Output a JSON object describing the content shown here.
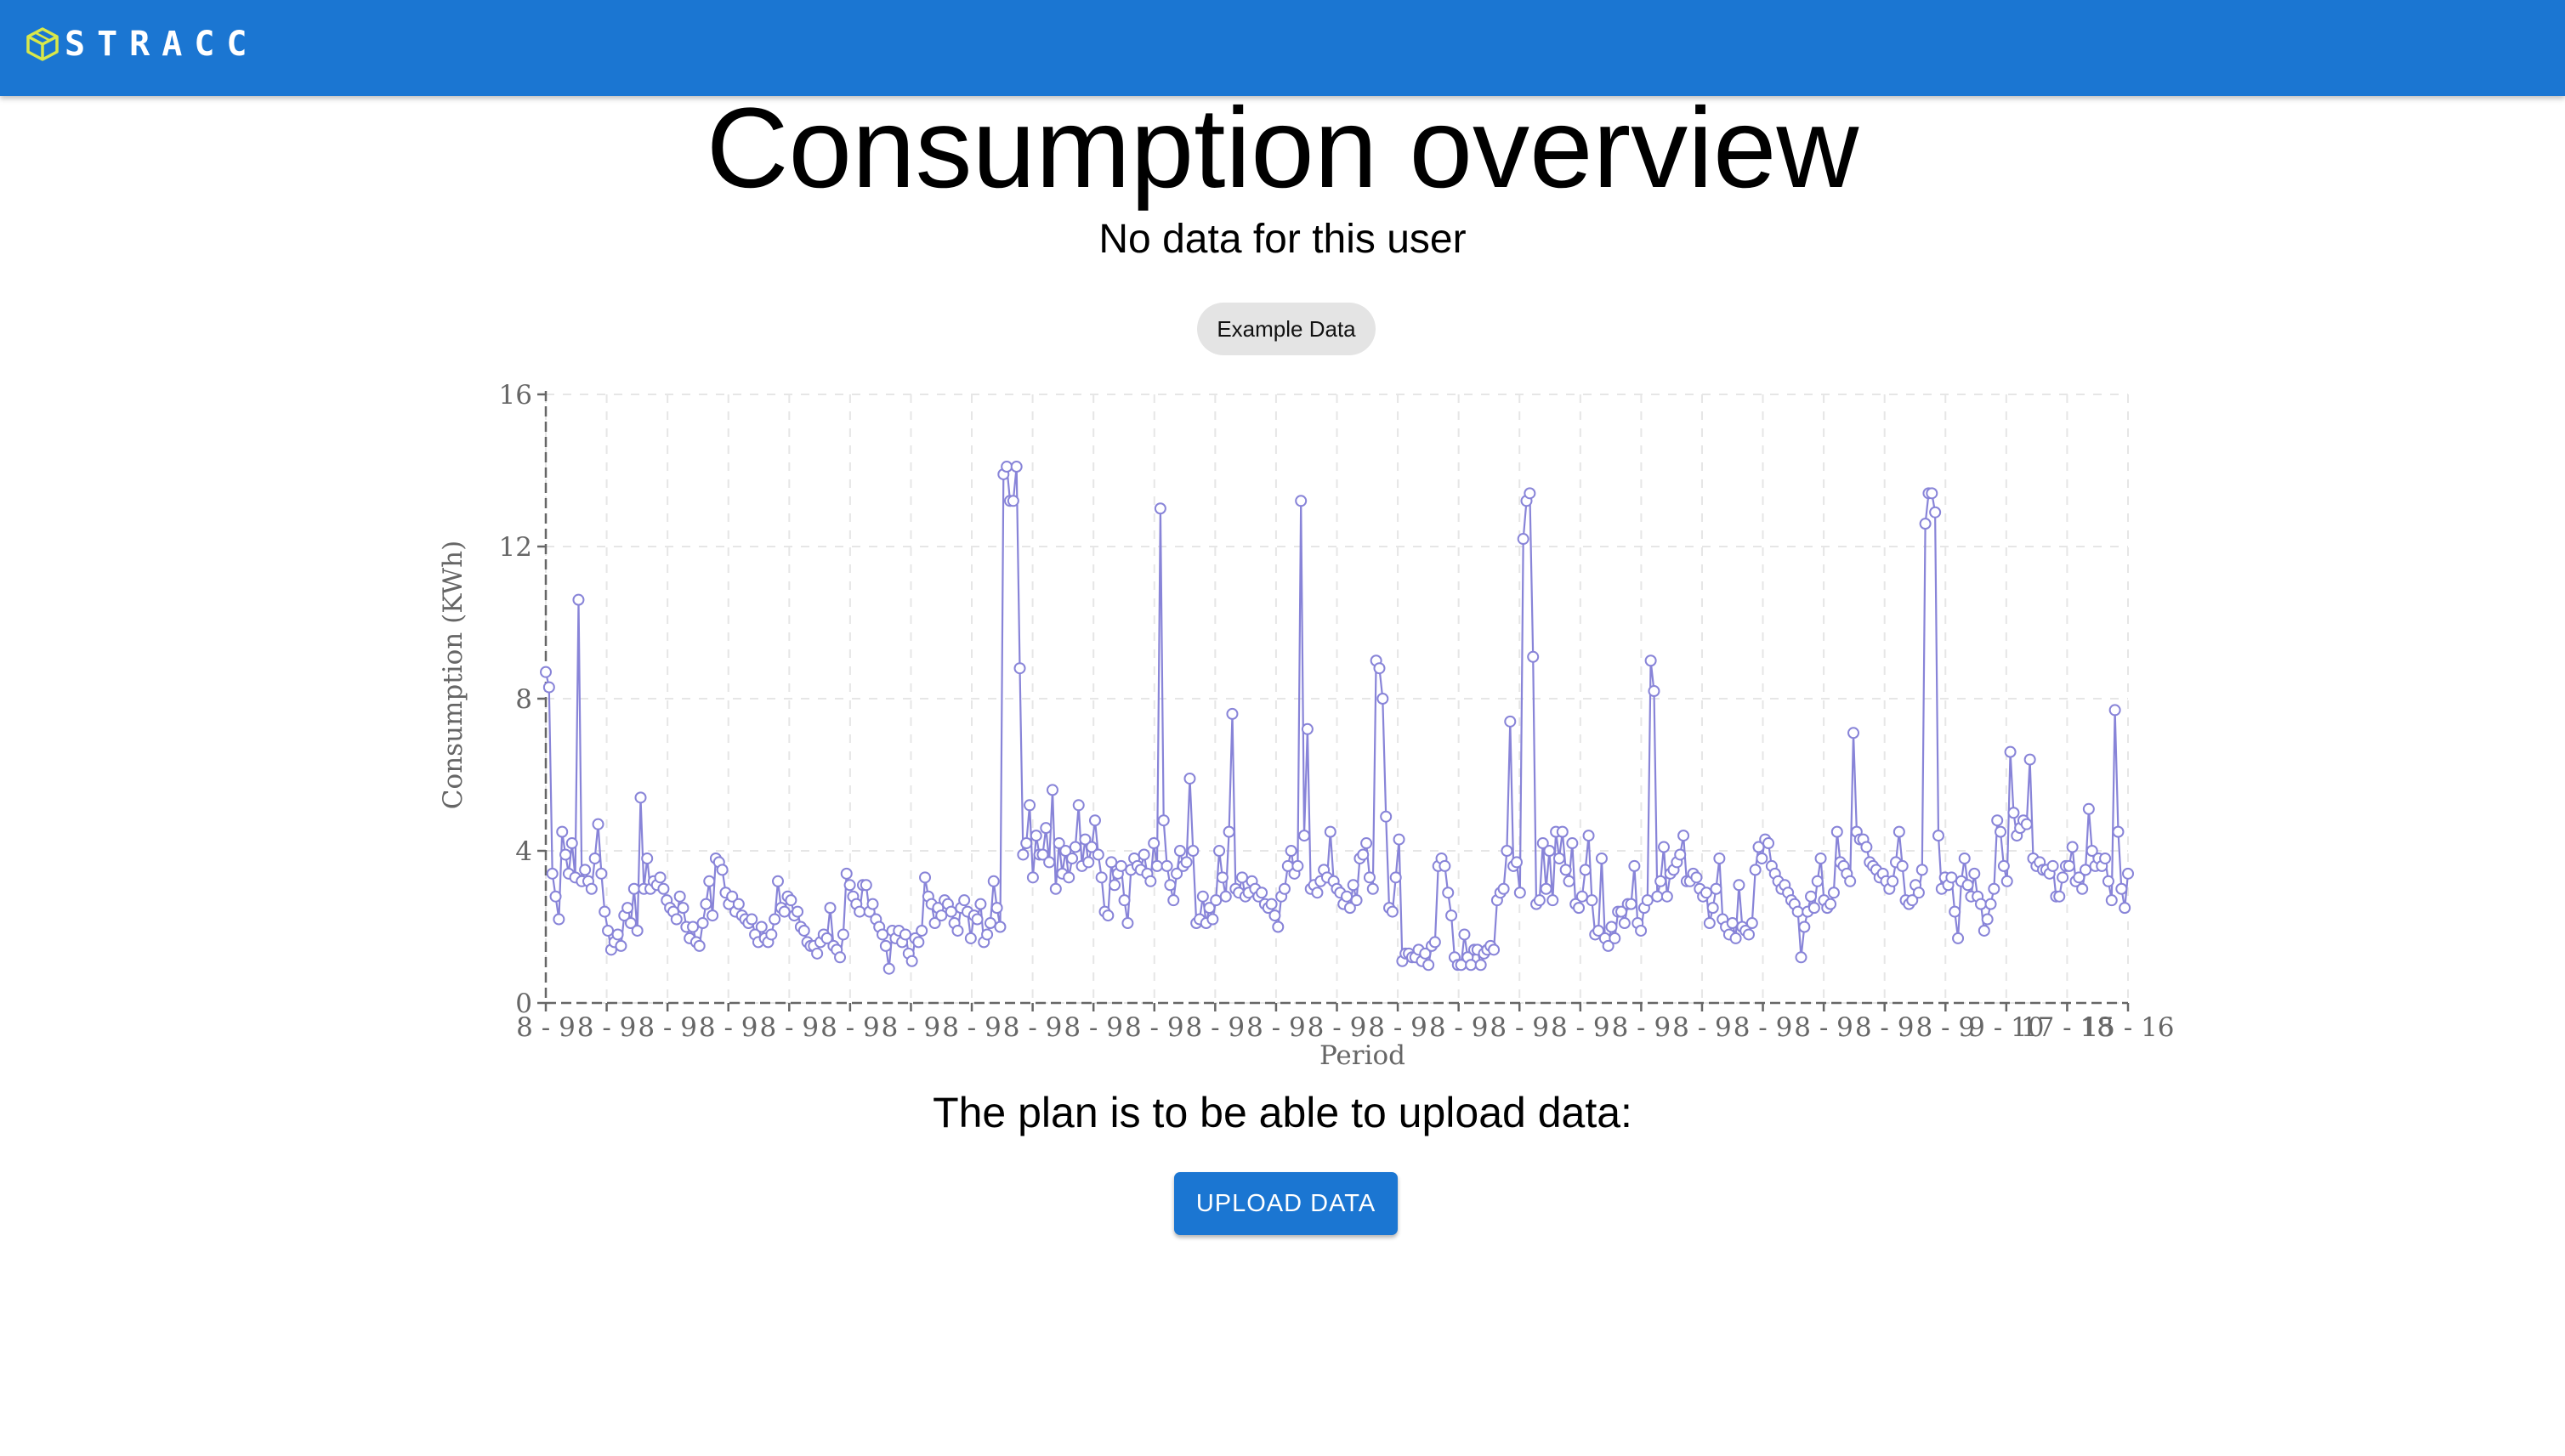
{
  "app": {
    "brand": "STRACC",
    "icon": "cube-logo-icon",
    "bar_color": "#1b76d2"
  },
  "main": {
    "title": "Consumption overview",
    "subtitle": "No data for this user",
    "example_button": "Example Data",
    "plan_text": "The plan is to be able to upload data:",
    "upload_button": "UPLOAD DATA"
  },
  "chart_data": {
    "type": "line",
    "xlabel": "Period",
    "ylabel": "Consumption (KWh)",
    "ylim": [
      0,
      16
    ],
    "yticks": [
      0,
      4,
      8,
      12,
      16
    ],
    "grid": true,
    "line_color": "#8884d8",
    "tick_labels": [
      "8 - 9",
      "8 - 9",
      "8 - 9",
      "8 - 9",
      "8 - 9",
      "8 - 9",
      "8 - 9",
      "8 - 9",
      "8 - 9",
      "8 - 9",
      "8 - 9",
      "8 - 9",
      "8 - 9",
      "8 - 9",
      "8 - 9",
      "8 - 9",
      "8 - 9",
      "8 - 9",
      "8 - 9",
      "8 - 9",
      "8 - 9",
      "8 - 9",
      "8 - 9",
      "8 - 9",
      "9 - 10",
      "17 - 18",
      "15 - 16"
    ],
    "series": [
      {
        "values": [
          8.7,
          8.3,
          3.4,
          2.8,
          2.2,
          4.5,
          3.9,
          3.4,
          4.2,
          3.3,
          10.6,
          3.2,
          3.5,
          3.2,
          3.0,
          3.8,
          4.7,
          3.4,
          2.4,
          1.9,
          1.4,
          1.6,
          1.8,
          1.5,
          2.3,
          2.5,
          2.1,
          3.0,
          1.9,
          5.4,
          3.0,
          3.8,
          3.0,
          3.2,
          3.1,
          3.3,
          3.0,
          2.7,
          2.5,
          2.4,
          2.2,
          2.8,
          2.5,
          2.0,
          1.7,
          2.0,
          1.6,
          1.5,
          2.1,
          2.6,
          3.2,
          2.3,
          3.8,
          3.7,
          3.5,
          2.9,
          2.6,
          2.8,
          2.4,
          2.6,
          2.3,
          2.2,
          2.1,
          2.2,
          1.8,
          1.6,
          2.0,
          1.7,
          1.6,
          1.8,
          2.2,
          3.2,
          2.5,
          2.4,
          2.8,
          2.7,
          2.3,
          2.4,
          2.0,
          1.9,
          1.6,
          1.5,
          1.5,
          1.3,
          1.6,
          1.8,
          1.7,
          2.5,
          1.5,
          1.4,
          1.2,
          1.8,
          3.4,
          3.1,
          2.8,
          2.6,
          2.4,
          3.1,
          3.1,
          2.4,
          2.6,
          2.2,
          2.0,
          1.8,
          1.5,
          0.9,
          1.9,
          1.7,
          1.9,
          1.6,
          1.8,
          1.3,
          1.1,
          1.7,
          1.6,
          1.9,
          3.3,
          2.8,
          2.6,
          2.1,
          2.5,
          2.3,
          2.7,
          2.6,
          2.4,
          2.1,
          1.9,
          2.5,
          2.7,
          2.4,
          1.7,
          2.3,
          2.2,
          2.6,
          1.6,
          1.8,
          2.1,
          3.2,
          2.5,
          2.0,
          13.9,
          14.1,
          13.2,
          13.2,
          14.1,
          8.8,
          3.9,
          4.2,
          5.2,
          3.3,
          4.4,
          3.9,
          3.9,
          4.6,
          3.7,
          5.6,
          3.0,
          4.2,
          3.4,
          4.0,
          3.3,
          3.8,
          4.1,
          5.2,
          3.6,
          4.3,
          3.7,
          4.1,
          4.8,
          3.9,
          3.3,
          2.4,
          2.3,
          3.7,
          3.1,
          3.4,
          3.6,
          2.7,
          2.1,
          3.5,
          3.8,
          3.6,
          3.5,
          3.9,
          3.4,
          3.2,
          4.2,
          3.6,
          13.0,
          4.8,
          3.6,
          3.1,
          2.7,
          3.4,
          4.0,
          3.6,
          3.7,
          5.9,
          4.0,
          2.1,
          2.2,
          2.8,
          2.1,
          2.5,
          2.2,
          2.7,
          4.0,
          3.3,
          2.8,
          4.5,
          7.6,
          3.0,
          2.9,
          3.3,
          2.8,
          2.9,
          3.2,
          3.0,
          2.8,
          2.9,
          2.6,
          2.5,
          2.6,
          2.3,
          2.0,
          2.8,
          3.0,
          3.6,
          4.0,
          3.4,
          3.6,
          13.2,
          4.4,
          7.2,
          3.0,
          3.1,
          2.9,
          3.2,
          3.5,
          3.3,
          4.5,
          3.2,
          3.0,
          2.9,
          2.6,
          2.8,
          2.5,
          3.1,
          2.7,
          3.8,
          3.9,
          4.2,
          3.3,
          3.0,
          9.0,
          8.8,
          8.0,
          4.9,
          2.5,
          2.4,
          3.3,
          4.3,
          1.1,
          1.3,
          1.3,
          1.2,
          1.2,
          1.4,
          1.1,
          1.3,
          1.0,
          1.5,
          1.6,
          3.6,
          3.8,
          3.6,
          2.9,
          2.3,
          1.2,
          1.0,
          1.0,
          1.8,
          1.2,
          1.0,
          1.4,
          1.4,
          1.0,
          1.3,
          1.4,
          1.5,
          1.4,
          2.7,
          2.9,
          3.0,
          4.0,
          7.4,
          3.6,
          3.7,
          2.9,
          12.2,
          13.2,
          13.4,
          9.1,
          2.6,
          2.7,
          4.2,
          3.0,
          4.0,
          2.7,
          4.5,
          3.8,
          4.5,
          3.5,
          3.2,
          4.2,
          2.6,
          2.5,
          2.8,
          3.5,
          4.4,
          2.7,
          1.8,
          1.9,
          3.8,
          1.7,
          1.5,
          2.0,
          1.7,
          2.4,
          2.4,
          2.1,
          2.6,
          2.6,
          3.6,
          2.1,
          1.9,
          2.5,
          2.7,
          9.0,
          8.2,
          2.8,
          3.2,
          4.1,
          2.8,
          3.4,
          3.5,
          3.7,
          3.9,
          4.4,
          3.2,
          3.2,
          3.4,
          3.3,
          3.0,
          2.8,
          2.9,
          2.1,
          2.5,
          3.0,
          3.8,
          2.2,
          2.0,
          1.8,
          2.1,
          1.7,
          3.1,
          2.0,
          1.9,
          1.8,
          2.1,
          3.5,
          4.1,
          3.8,
          4.3,
          4.2,
          3.6,
          3.4,
          3.2,
          3.0,
          3.1,
          2.9,
          2.7,
          2.6,
          2.4,
          1.2,
          2.0,
          2.4,
          2.8,
          2.5,
          3.2,
          3.8,
          2.7,
          2.5,
          2.6,
          2.9,
          4.5,
          3.7,
          3.6,
          3.4,
          3.2,
          7.1,
          4.5,
          4.3,
          4.3,
          4.1,
          3.7,
          3.6,
          3.5,
          3.3,
          3.4,
          3.2,
          3.0,
          3.2,
          3.7,
          4.5,
          3.6,
          2.7,
          2.6,
          2.7,
          3.1,
          2.9,
          3.5,
          12.6,
          13.4,
          13.4,
          12.9,
          4.4,
          3.0,
          3.3,
          3.1,
          3.3,
          2.4,
          1.7,
          3.2,
          3.8,
          3.1,
          2.8,
          3.4,
          2.8,
          2.6,
          1.9,
          2.2,
          2.6,
          3.0,
          4.8,
          4.5,
          3.6,
          3.2,
          6.6,
          5.0,
          4.4,
          4.6,
          4.8,
          4.7,
          6.4,
          3.8,
          3.6,
          3.7,
          3.5,
          3.5,
          3.4,
          3.6,
          2.8,
          2.8,
          3.3,
          3.6,
          3.6,
          4.1,
          3.2,
          3.3,
          3.0,
          3.5,
          5.1,
          4.0,
          3.6,
          3.8,
          3.6,
          3.8,
          3.2,
          2.7,
          7.7,
          4.5,
          3.0,
          2.5,
          3.4
        ]
      }
    ]
  }
}
